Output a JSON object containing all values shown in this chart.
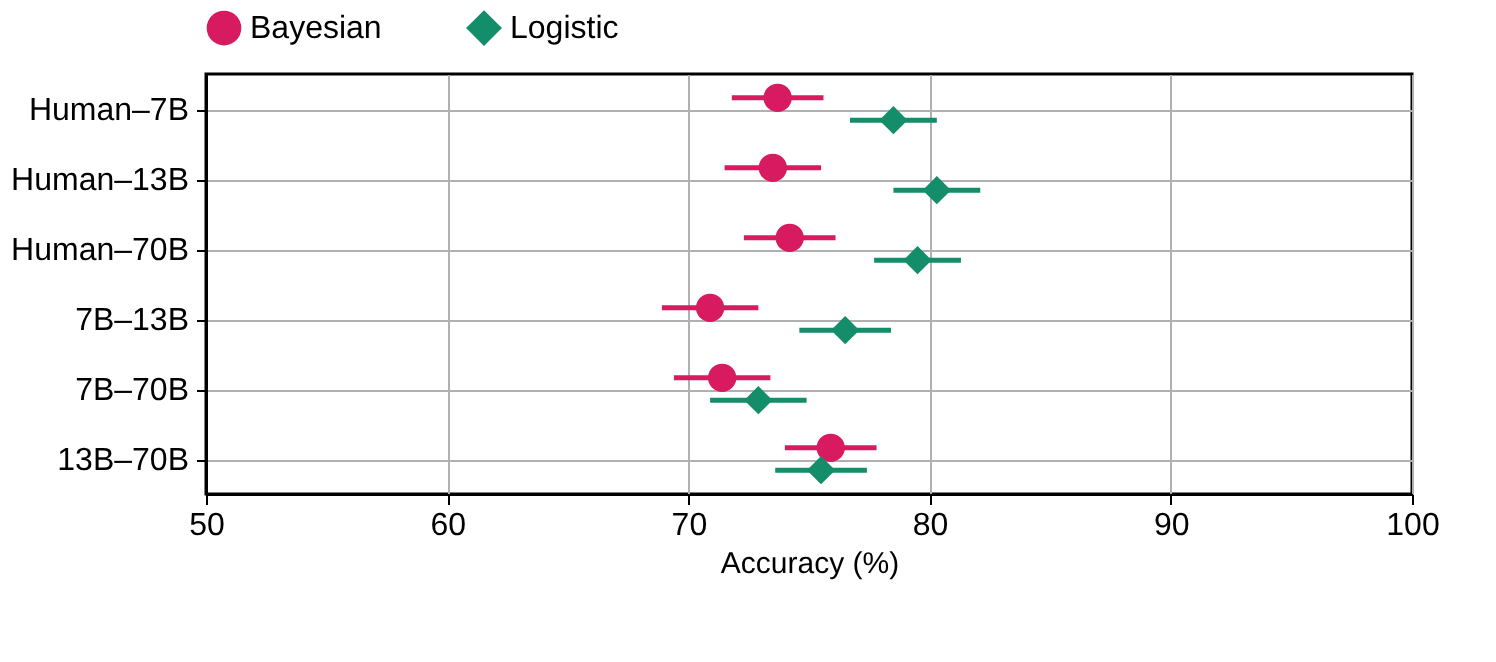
{
  "chart_data": {
    "type": "scatter",
    "orientation": "horizontal",
    "xlabel": "Accuracy (%)",
    "categories": [
      "Human–7B",
      "Human–13B",
      "Human–70B",
      "7B–13B",
      "7B–70B",
      "13B–70B"
    ],
    "series": [
      {
        "name": "Bayesian",
        "color": "#d81b60",
        "marker": "circle",
        "values": [
          73.7,
          73.5,
          74.2,
          70.9,
          71.4,
          75.9
        ],
        "errors": [
          1.9,
          2.0,
          1.9,
          2.0,
          2.0,
          1.9
        ]
      },
      {
        "name": "Logistic",
        "color": "#138d6a",
        "marker": "diamond",
        "values": [
          78.5,
          80.3,
          79.5,
          76.5,
          72.9,
          75.5
        ],
        "errors": [
          1.8,
          1.8,
          1.8,
          1.9,
          2.0,
          1.9
        ]
      }
    ],
    "xlim": [
      50,
      100
    ],
    "xticks": [
      50,
      60,
      70,
      80,
      90,
      100
    ],
    "grid": true,
    "legend": "top"
  }
}
